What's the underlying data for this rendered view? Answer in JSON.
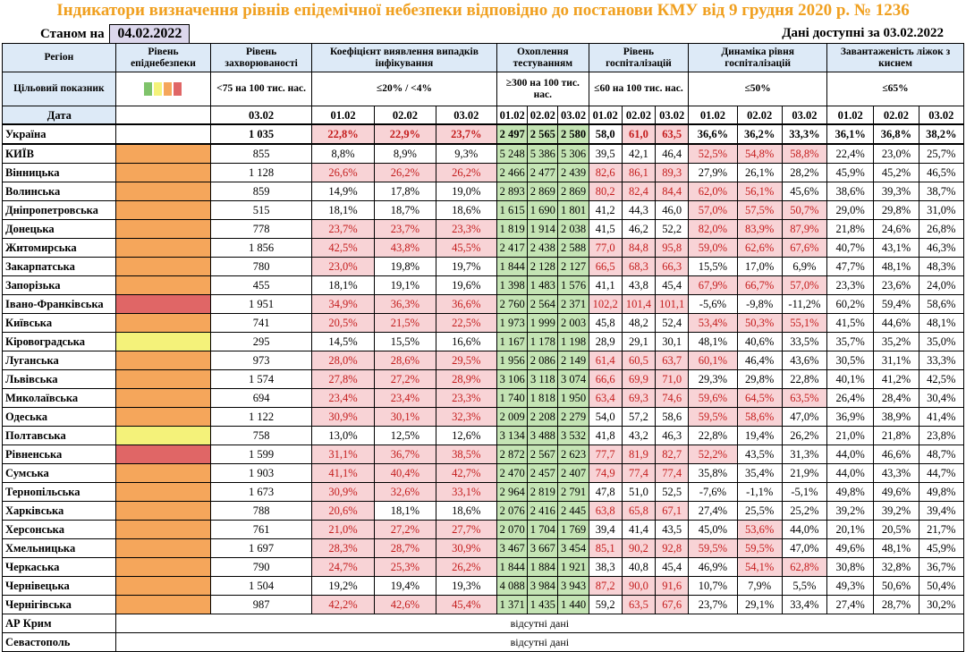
{
  "title": "Індикатори визначення рівнів епідемічної небезпеки відповідно до постанови КМУ від 9 грудня 2020 р. № 1236",
  "as_of_label": "Станом на",
  "as_of_date": "04.02.2022",
  "data_available_label": "Дані доступні за",
  "data_available_date": "03.02.2022",
  "headers": {
    "region": "Регіон",
    "level": "Рівень епіднебезпеки",
    "incidence": "Рівень захворюваності",
    "detection": "Коефіцієнт виявлення випадків інфікування",
    "testing": "Охоплення тестуванням",
    "hosp": "Рівень госпіталізацій",
    "hosp_dyn": "Динаміка рівня госпіталізацій",
    "oxygen": "Завантаженість ліжок з киснем"
  },
  "target": {
    "label": "Цільовий показник",
    "incidence": "<75 на 100 тис. нас.",
    "detection": "≤20% / <4%",
    "testing": "≥300 на 100 тис. нас.",
    "hosp": "≤60 на 100 тис. нас.",
    "hosp_dyn": "≤50%",
    "oxygen": "≤65%"
  },
  "legend_colors": [
    "#7fc36b",
    "#f4f27a",
    "#f5a65b",
    "#e06666"
  ],
  "date_row": {
    "label": "Дата",
    "incidence": "03.02",
    "dates": [
      "01.02",
      "02.02",
      "03.02"
    ]
  },
  "ukraine": {
    "name": "Україна",
    "incidence": "1 035",
    "detection": [
      "22,8%",
      "22,9%",
      "23,7%"
    ],
    "testing": [
      "2 497",
      "2 565",
      "2 580"
    ],
    "hosp": [
      "58,0",
      "61,0",
      "63,5"
    ],
    "hosp_dyn": [
      "36,6%",
      "36,2%",
      "33,3%"
    ],
    "oxygen": [
      "36,1%",
      "36,8%",
      "38,2%"
    ]
  },
  "regions": [
    {
      "name": "КИЇВ",
      "level": "orange",
      "incidence": "855",
      "detection": [
        "8,8%",
        "8,9%",
        "9,3%"
      ],
      "testing": [
        "5 248",
        "5 386",
        "5 306"
      ],
      "hosp": [
        "39,5",
        "42,1",
        "46,4"
      ],
      "hosp_dyn": [
        "52,5%",
        "54,8%",
        "58,8%"
      ],
      "oxygen": [
        "22,4%",
        "23,0%",
        "25,7%"
      ]
    },
    {
      "name": "Вінницька",
      "level": "orange",
      "incidence": "1 128",
      "detection": [
        "26,6%",
        "26,2%",
        "26,2%"
      ],
      "testing": [
        "2 466",
        "2 477",
        "2 439"
      ],
      "hosp": [
        "82,6",
        "86,1",
        "89,3"
      ],
      "hosp_dyn": [
        "27,9%",
        "26,1%",
        "28,2%"
      ],
      "oxygen": [
        "45,9%",
        "45,2%",
        "46,5%"
      ]
    },
    {
      "name": "Волинська",
      "level": "orange",
      "incidence": "859",
      "detection": [
        "14,9%",
        "17,8%",
        "19,0%"
      ],
      "testing": [
        "2 893",
        "2 869",
        "2 869"
      ],
      "hosp": [
        "80,2",
        "82,4",
        "84,4"
      ],
      "hosp_dyn": [
        "62,0%",
        "56,1%",
        "45,6%"
      ],
      "oxygen": [
        "38,6%",
        "39,3%",
        "38,7%"
      ]
    },
    {
      "name": "Дніпропетровська",
      "level": "orange",
      "incidence": "515",
      "detection": [
        "18,1%",
        "18,7%",
        "18,6%"
      ],
      "testing": [
        "1 615",
        "1 690",
        "1 801"
      ],
      "hosp": [
        "41,2",
        "44,3",
        "46,0"
      ],
      "hosp_dyn": [
        "57,0%",
        "57,5%",
        "50,7%"
      ],
      "oxygen": [
        "29,0%",
        "29,8%",
        "31,0%"
      ]
    },
    {
      "name": "Донецька",
      "level": "orange",
      "incidence": "778",
      "detection": [
        "23,7%",
        "23,7%",
        "23,3%"
      ],
      "testing": [
        "1 819",
        "1 914",
        "2 038"
      ],
      "hosp": [
        "41,5",
        "46,2",
        "52,2"
      ],
      "hosp_dyn": [
        "82,0%",
        "83,9%",
        "87,9%"
      ],
      "oxygen": [
        "21,8%",
        "24,6%",
        "26,8%"
      ]
    },
    {
      "name": "Житомирська",
      "level": "orange",
      "incidence": "1 856",
      "detection": [
        "42,5%",
        "43,8%",
        "45,5%"
      ],
      "testing": [
        "2 417",
        "2 438",
        "2 588"
      ],
      "hosp": [
        "77,0",
        "84,8",
        "95,8"
      ],
      "hosp_dyn": [
        "59,0%",
        "62,6%",
        "67,6%"
      ],
      "oxygen": [
        "40,7%",
        "43,1%",
        "46,3%"
      ]
    },
    {
      "name": "Закарпатська",
      "level": "orange",
      "incidence": "780",
      "detection": [
        "23,0%",
        "19,8%",
        "19,7%"
      ],
      "testing": [
        "1 844",
        "2 128",
        "2 127"
      ],
      "hosp": [
        "66,5",
        "68,3",
        "66,3"
      ],
      "hosp_dyn": [
        "15,5%",
        "17,0%",
        "6,9%"
      ],
      "oxygen": [
        "47,7%",
        "48,1%",
        "48,3%"
      ]
    },
    {
      "name": "Запорізька",
      "level": "orange",
      "incidence": "455",
      "detection": [
        "18,1%",
        "19,1%",
        "19,6%"
      ],
      "testing": [
        "1 398",
        "1 483",
        "1 576"
      ],
      "hosp": [
        "41,1",
        "43,8",
        "45,4"
      ],
      "hosp_dyn": [
        "67,9%",
        "66,7%",
        "57,0%"
      ],
      "oxygen": [
        "23,3%",
        "23,6%",
        "24,0%"
      ]
    },
    {
      "name": "Івано-Франківська",
      "level": "red",
      "incidence": "1 951",
      "detection": [
        "34,9%",
        "36,3%",
        "36,6%"
      ],
      "testing": [
        "2 760",
        "2 564",
        "2 371"
      ],
      "hosp": [
        "102,2",
        "101,4",
        "101,1"
      ],
      "hosp_dyn": [
        "-5,6%",
        "-9,8%",
        "-11,2%"
      ],
      "oxygen": [
        "60,2%",
        "59,4%",
        "58,6%"
      ]
    },
    {
      "name": "Київська",
      "level": "orange",
      "incidence": "741",
      "detection": [
        "20,5%",
        "21,5%",
        "22,5%"
      ],
      "testing": [
        "1 973",
        "1 999",
        "2 003"
      ],
      "hosp": [
        "45,8",
        "48,2",
        "52,4"
      ],
      "hosp_dyn": [
        "53,4%",
        "50,3%",
        "55,1%"
      ],
      "oxygen": [
        "41,5%",
        "44,6%",
        "48,1%"
      ]
    },
    {
      "name": "Кіровоградська",
      "level": "yellow",
      "incidence": "295",
      "detection": [
        "14,5%",
        "15,5%",
        "16,6%"
      ],
      "testing": [
        "1 167",
        "1 178",
        "1 198"
      ],
      "hosp": [
        "28,9",
        "29,1",
        "30,1"
      ],
      "hosp_dyn": [
        "48,1%",
        "40,6%",
        "33,5%"
      ],
      "oxygen": [
        "35,7%",
        "35,2%",
        "35,0%"
      ]
    },
    {
      "name": "Луганська",
      "level": "orange",
      "incidence": "973",
      "detection": [
        "28,0%",
        "28,6%",
        "29,5%"
      ],
      "testing": [
        "1 956",
        "2 086",
        "2 149"
      ],
      "hosp": [
        "61,4",
        "60,5",
        "63,7"
      ],
      "hosp_dyn": [
        "60,1%",
        "46,4%",
        "43,6%"
      ],
      "oxygen": [
        "30,5%",
        "31,1%",
        "33,3%"
      ]
    },
    {
      "name": "Львівська",
      "level": "orange",
      "incidence": "1 574",
      "detection": [
        "27,8%",
        "27,2%",
        "28,9%"
      ],
      "testing": [
        "3 106",
        "3 118",
        "3 074"
      ],
      "hosp": [
        "66,6",
        "69,9",
        "71,0"
      ],
      "hosp_dyn": [
        "29,3%",
        "29,8%",
        "22,8%"
      ],
      "oxygen": [
        "40,1%",
        "41,2%",
        "42,5%"
      ]
    },
    {
      "name": "Миколаївська",
      "level": "orange",
      "incidence": "694",
      "detection": [
        "23,4%",
        "23,4%",
        "23,3%"
      ],
      "testing": [
        "1 740",
        "1 818",
        "1 950"
      ],
      "hosp": [
        "63,4",
        "69,3",
        "74,6"
      ],
      "hosp_dyn": [
        "59,6%",
        "64,5%",
        "63,5%"
      ],
      "oxygen": [
        "26,4%",
        "28,4%",
        "30,4%"
      ]
    },
    {
      "name": "Одеська",
      "level": "orange",
      "incidence": "1 122",
      "detection": [
        "30,9%",
        "30,1%",
        "32,3%"
      ],
      "testing": [
        "2 009",
        "2 208",
        "2 279"
      ],
      "hosp": [
        "54,0",
        "57,2",
        "58,6"
      ],
      "hosp_dyn": [
        "59,5%",
        "58,6%",
        "47,0%"
      ],
      "oxygen": [
        "36,9%",
        "38,9%",
        "41,4%"
      ]
    },
    {
      "name": "Полтавська",
      "level": "yellow",
      "incidence": "758",
      "detection": [
        "13,0%",
        "12,5%",
        "12,6%"
      ],
      "testing": [
        "3 134",
        "3 488",
        "3 532"
      ],
      "hosp": [
        "41,8",
        "43,2",
        "46,3"
      ],
      "hosp_dyn": [
        "22,8%",
        "19,4%",
        "26,2%"
      ],
      "oxygen": [
        "21,0%",
        "21,8%",
        "23,8%"
      ]
    },
    {
      "name": "Рівненська",
      "level": "red",
      "incidence": "1 599",
      "detection": [
        "31,1%",
        "36,7%",
        "38,5%"
      ],
      "testing": [
        "2 872",
        "2 567",
        "2 623"
      ],
      "hosp": [
        "77,7",
        "81,9",
        "82,7"
      ],
      "hosp_dyn": [
        "52,2%",
        "43,5%",
        "31,3%"
      ],
      "oxygen": [
        "44,0%",
        "46,6%",
        "48,7%"
      ]
    },
    {
      "name": "Сумська",
      "level": "orange",
      "incidence": "1 903",
      "detection": [
        "41,1%",
        "40,4%",
        "42,7%"
      ],
      "testing": [
        "2 470",
        "2 457",
        "2 407"
      ],
      "hosp": [
        "74,9",
        "77,4",
        "77,4"
      ],
      "hosp_dyn": [
        "35,8%",
        "35,4%",
        "21,9%"
      ],
      "oxygen": [
        "44,0%",
        "43,3%",
        "44,7%"
      ]
    },
    {
      "name": "Тернопільська",
      "level": "orange",
      "incidence": "1 673",
      "detection": [
        "30,9%",
        "32,6%",
        "33,1%"
      ],
      "testing": [
        "2 964",
        "2 819",
        "2 791"
      ],
      "hosp": [
        "47,8",
        "51,0",
        "52,5"
      ],
      "hosp_dyn": [
        "-7,6%",
        "-1,1%",
        "-5,1%"
      ],
      "oxygen": [
        "49,8%",
        "49,6%",
        "49,8%"
      ]
    },
    {
      "name": "Харківська",
      "level": "orange",
      "incidence": "788",
      "detection": [
        "20,6%",
        "18,1%",
        "18,6%"
      ],
      "testing": [
        "2 076",
        "2 416",
        "2 445"
      ],
      "hosp": [
        "63,8",
        "65,8",
        "67,1"
      ],
      "hosp_dyn": [
        "27,4%",
        "25,5%",
        "25,2%"
      ],
      "oxygen": [
        "39,2%",
        "39,2%",
        "39,4%"
      ]
    },
    {
      "name": "Херсонська",
      "level": "orange",
      "incidence": "761",
      "detection": [
        "21,0%",
        "27,2%",
        "27,7%"
      ],
      "testing": [
        "2 070",
        "1 704",
        "1 769"
      ],
      "hosp": [
        "39,4",
        "41,4",
        "43,5"
      ],
      "hosp_dyn": [
        "45,0%",
        "53,6%",
        "44,0%"
      ],
      "oxygen": [
        "20,1%",
        "20,5%",
        "21,7%"
      ]
    },
    {
      "name": "Хмельницька",
      "level": "orange",
      "incidence": "1 697",
      "detection": [
        "28,3%",
        "28,7%",
        "30,9%"
      ],
      "testing": [
        "3 467",
        "3 667",
        "3 454"
      ],
      "hosp": [
        "85,1",
        "90,2",
        "92,8"
      ],
      "hosp_dyn": [
        "59,5%",
        "59,5%",
        "47,0%"
      ],
      "oxygen": [
        "49,6%",
        "48,1%",
        "45,9%"
      ]
    },
    {
      "name": "Черкаська",
      "level": "orange",
      "incidence": "790",
      "detection": [
        "24,7%",
        "25,3%",
        "26,2%"
      ],
      "testing": [
        "1 844",
        "1 884",
        "1 921"
      ],
      "hosp": [
        "38,3",
        "40,8",
        "45,4"
      ],
      "hosp_dyn": [
        "46,9%",
        "54,1%",
        "62,8%"
      ],
      "oxygen": [
        "30,8%",
        "32,8%",
        "36,7%"
      ]
    },
    {
      "name": "Чернівецька",
      "level": "orange",
      "incidence": "1 504",
      "detection": [
        "19,2%",
        "19,4%",
        "19,3%"
      ],
      "testing": [
        "4 088",
        "3 984",
        "3 943"
      ],
      "hosp": [
        "87,2",
        "90,0",
        "91,6"
      ],
      "hosp_dyn": [
        "10,7%",
        "7,9%",
        "5,5%"
      ],
      "oxygen": [
        "49,3%",
        "50,6%",
        "50,4%"
      ]
    },
    {
      "name": "Чернігівська",
      "level": "orange",
      "incidence": "987",
      "detection": [
        "42,2%",
        "42,6%",
        "45,4%"
      ],
      "testing": [
        "1 371",
        "1 435",
        "1 440"
      ],
      "hosp": [
        "59,2",
        "63,5",
        "67,6"
      ],
      "hosp_dyn": [
        "23,7%",
        "29,1%",
        "33,4%"
      ],
      "oxygen": [
        "27,4%",
        "28,7%",
        "30,2%"
      ]
    }
  ],
  "missing": [
    {
      "name": "АР Крим",
      "text": "відсутні дані"
    },
    {
      "name": "Севастополь",
      "text": "відсутні дані"
    }
  ]
}
